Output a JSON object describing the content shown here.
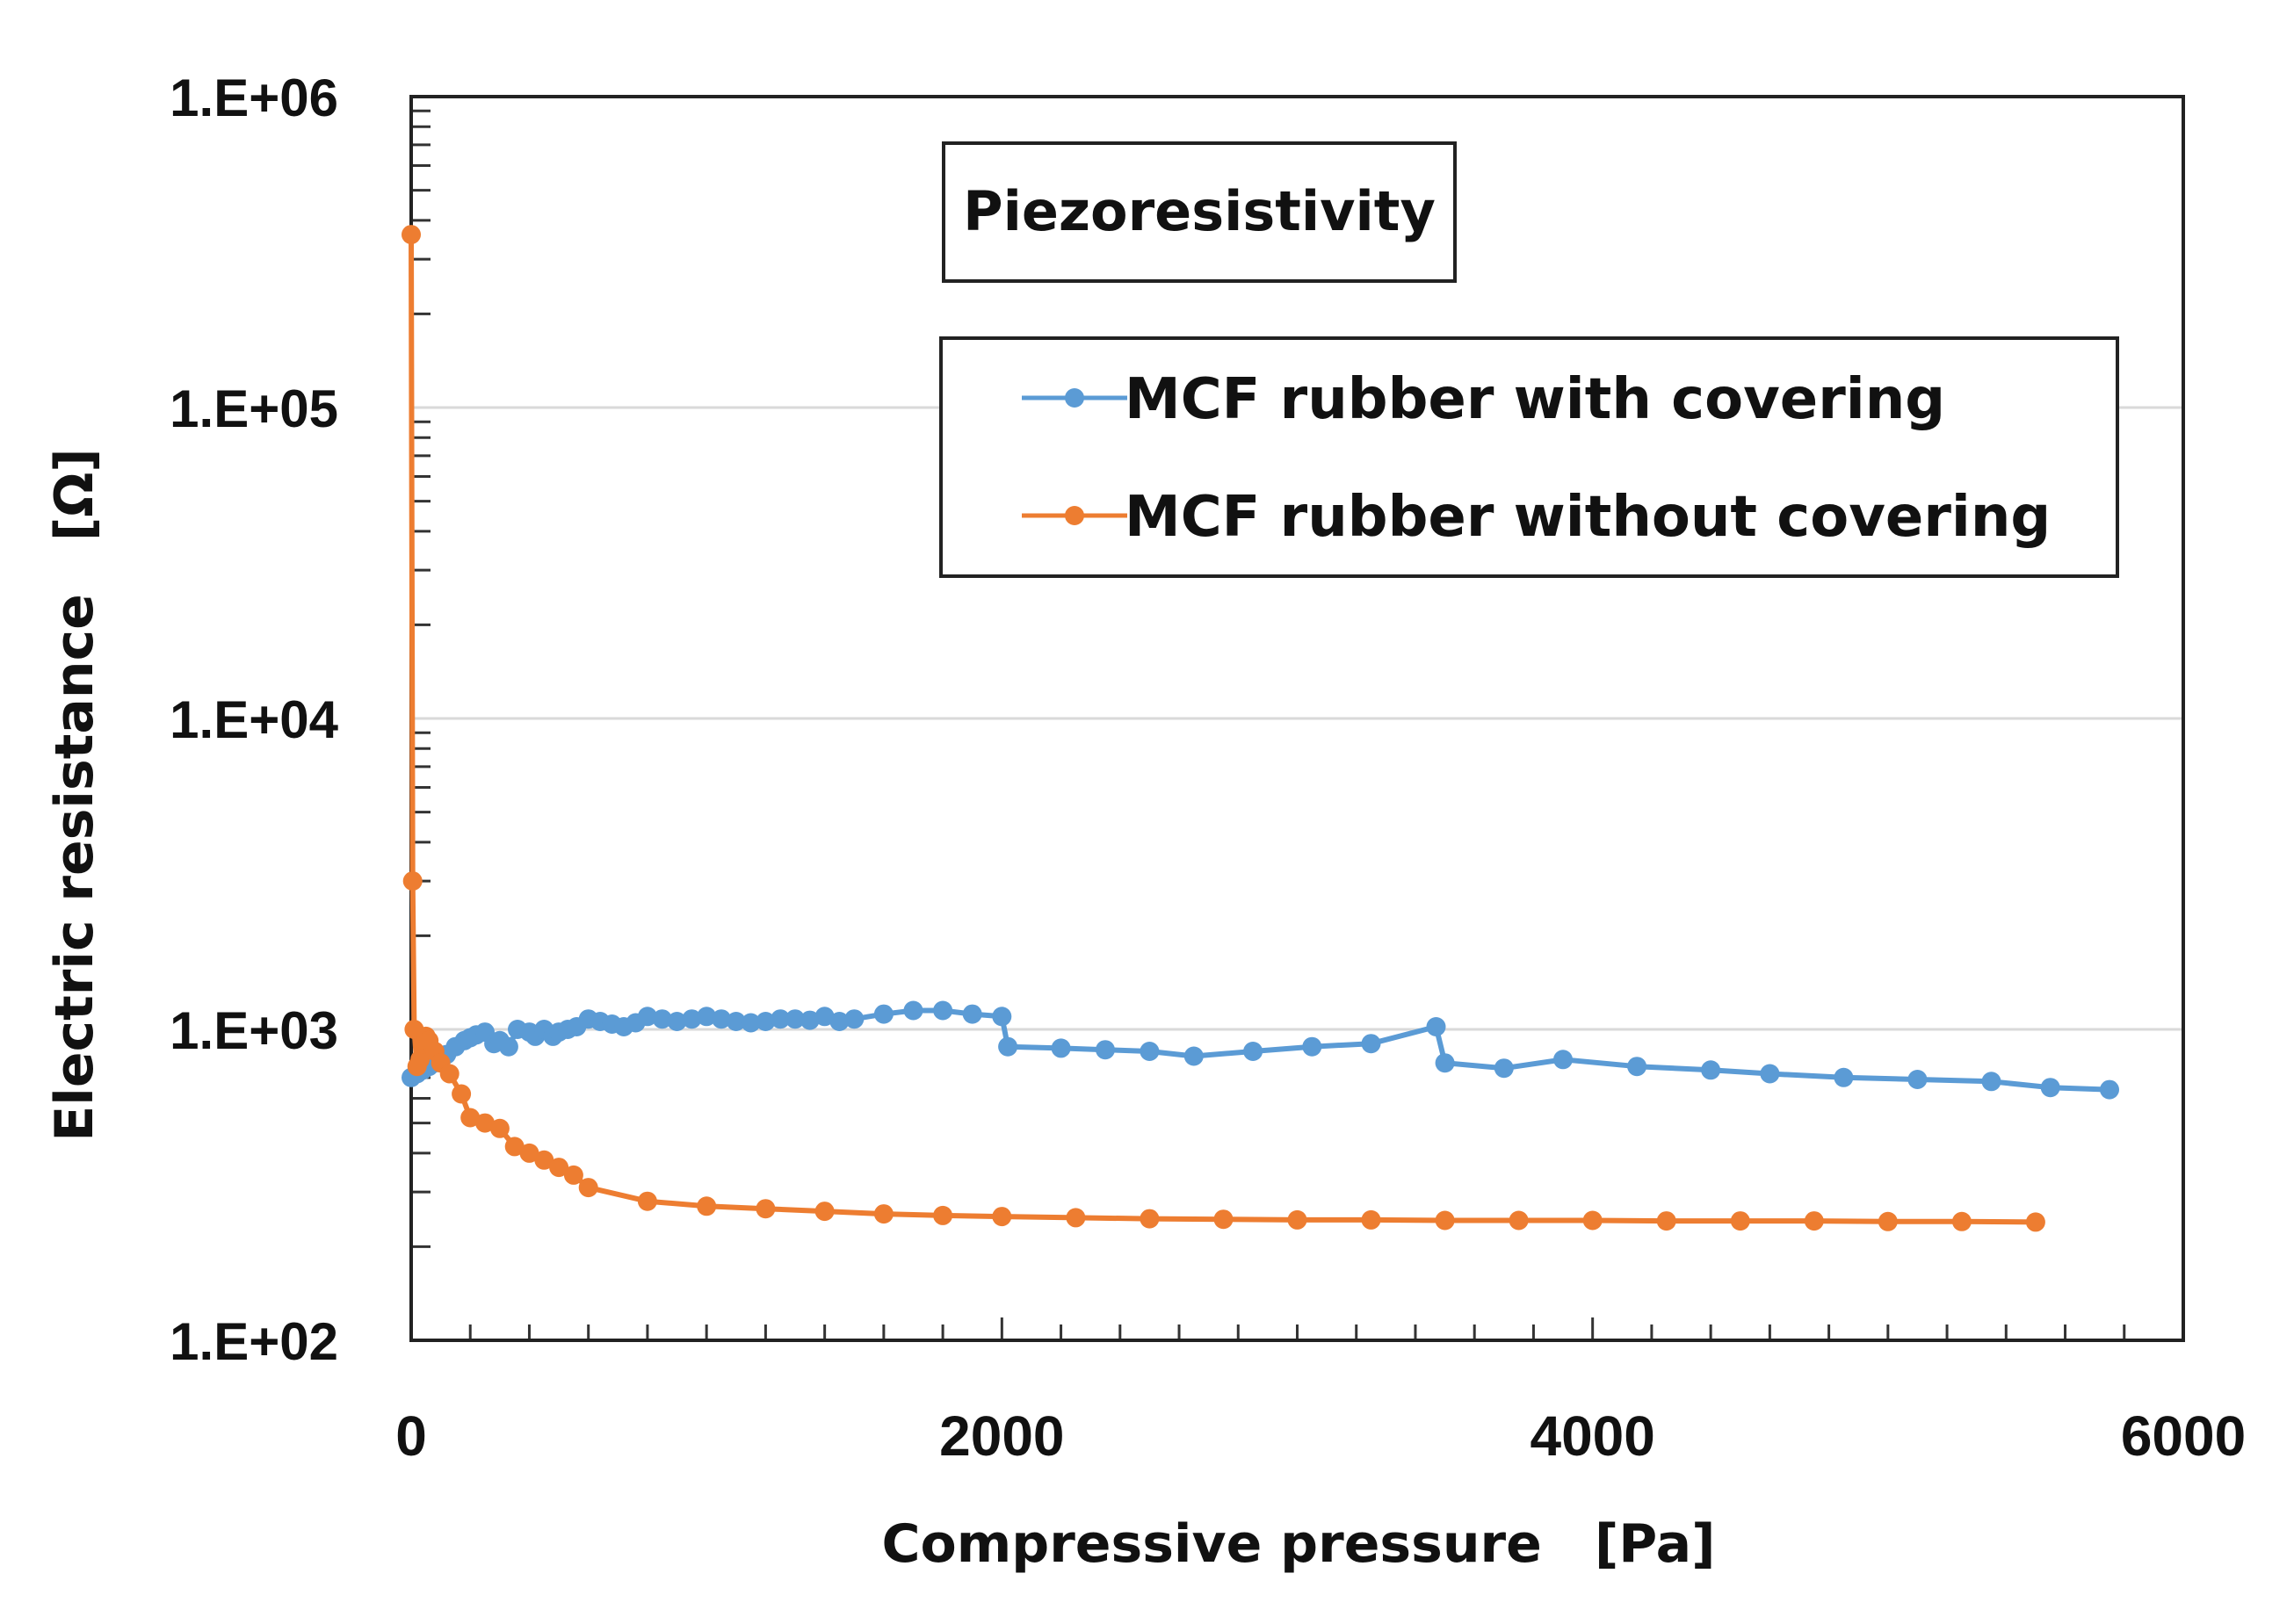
{
  "chart_data": {
    "type": "line",
    "title": "Piezoresistivity",
    "xlabel": "Compressive pressure　[Pa]",
    "ylabel": "Electric resistance　[Ω]",
    "x_scale": "linear",
    "y_scale": "log",
    "xlim": [
      0,
      6000
    ],
    "ylim": [
      100,
      1000000
    ],
    "x_ticks": [
      {
        "value": 0,
        "label": "0"
      },
      {
        "value": 2000,
        "label": "2000"
      },
      {
        "value": 4000,
        "label": "4000"
      },
      {
        "value": 6000,
        "label": "6000"
      }
    ],
    "y_ticks": [
      {
        "value": 100,
        "label": "1.E+02"
      },
      {
        "value": 1000,
        "label": "1.E+03"
      },
      {
        "value": 10000,
        "label": "1.E+04"
      },
      {
        "value": 100000,
        "label": "1.E+05"
      },
      {
        "value": 1000000,
        "label": "1.E+06"
      }
    ],
    "gridlines": "horizontal major",
    "legend_position": "top-right",
    "series": [
      {
        "name": "MCF rubber with covering",
        "color": "#5b9bd5",
        "x": [
          0,
          20,
          40,
          60,
          80,
          100,
          120,
          150,
          180,
          200,
          220,
          250,
          280,
          300,
          330,
          360,
          400,
          420,
          450,
          480,
          500,
          530,
          560,
          600,
          640,
          680,
          720,
          760,
          800,
          850,
          900,
          950,
          1000,
          1050,
          1100,
          1150,
          1200,
          1250,
          1300,
          1350,
          1400,
          1450,
          1500,
          1600,
          1700,
          1800,
          1900,
          2000,
          2020,
          2200,
          2350,
          2500,
          2650,
          2850,
          3050,
          3250,
          3470,
          3500,
          3700,
          3900,
          4150,
          4400,
          4600,
          4850,
          5100,
          5350,
          5550,
          5750
        ],
        "y": [
          700,
          720,
          740,
          760,
          780,
          800,
          830,
          880,
          920,
          940,
          960,
          980,
          900,
          920,
          880,
          1000,
          980,
          950,
          1000,
          950,
          980,
          1000,
          1020,
          1080,
          1060,
          1040,
          1020,
          1050,
          1100,
          1080,
          1060,
          1080,
          1100,
          1080,
          1060,
          1050,
          1060,
          1080,
          1080,
          1070,
          1100,
          1060,
          1080,
          1120,
          1150,
          1150,
          1120,
          1100,
          880,
          870,
          860,
          850,
          820,
          850,
          880,
          900,
          1020,
          780,
          750,
          800,
          760,
          740,
          720,
          700,
          690,
          680,
          650,
          640
        ]
      },
      {
        "name": "MCF rubber without covering",
        "color": "#ed7d31",
        "x": [
          0,
          5,
          10,
          20,
          30,
          40,
          50,
          60,
          80,
          100,
          130,
          170,
          200,
          250,
          300,
          350,
          400,
          450,
          500,
          550,
          600,
          800,
          1000,
          1200,
          1400,
          1600,
          1800,
          2000,
          2250,
          2500,
          2750,
          3000,
          3250,
          3500,
          3750,
          4000,
          4250,
          4500,
          4750,
          5000,
          5250,
          5500
        ],
        "y": [
          360000,
          3000,
          1000,
          760,
          800,
          900,
          950,
          920,
          850,
          780,
          720,
          620,
          520,
          500,
          480,
          420,
          400,
          380,
          360,
          340,
          310,
          280,
          270,
          265,
          260,
          255,
          252,
          250,
          248,
          246,
          245,
          244,
          244,
          243,
          243,
          243,
          242,
          242,
          242,
          241,
          241,
          240
        ]
      }
    ]
  }
}
